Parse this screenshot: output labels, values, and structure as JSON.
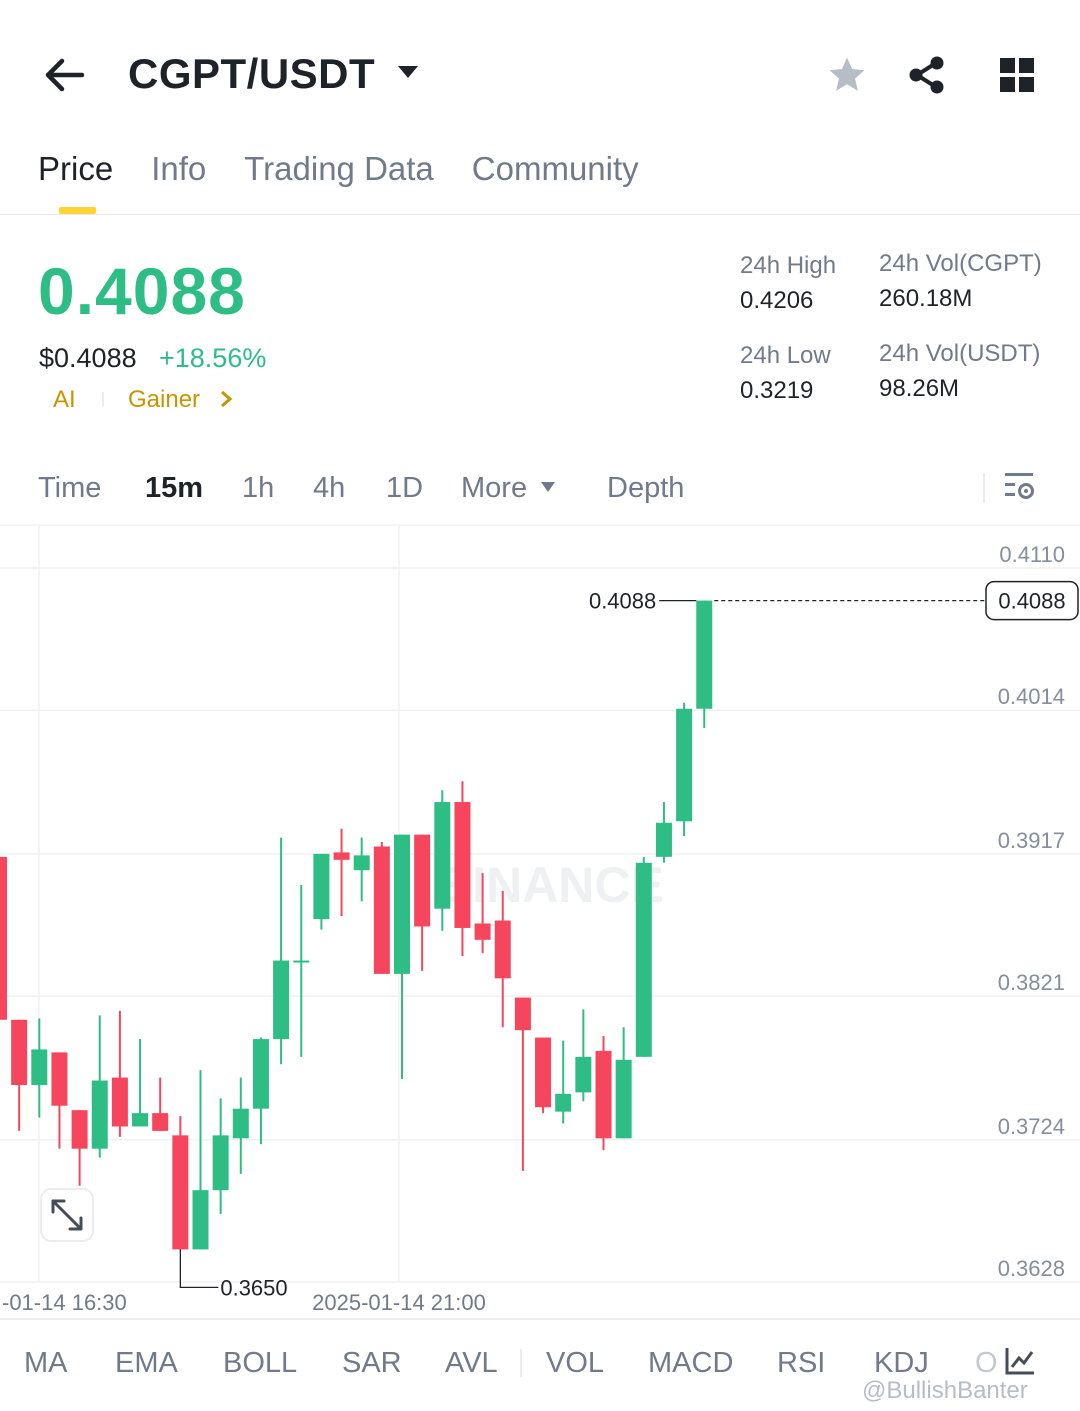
{
  "header": {
    "pair": "CGPT/USDT"
  },
  "tabs": [
    "Price",
    "Info",
    "Trading Data",
    "Community"
  ],
  "price": {
    "last": "0.4088",
    "usd": "$0.4088",
    "change_pct": "+18.56%",
    "tags": [
      "AI",
      "Gainer"
    ]
  },
  "stats": {
    "high_label": "24h High",
    "high": "0.4206",
    "low_label": "24h Low",
    "low": "0.3219",
    "vol_base_label": "24h Vol(CGPT)",
    "vol_base": "260.18M",
    "vol_quote_label": "24h Vol(USDT)",
    "vol_quote": "98.26M"
  },
  "intervals": {
    "time": "Time",
    "m15": "15m",
    "h1": "1h",
    "h4": "4h",
    "d1": "1D",
    "more": "More",
    "depth": "Depth"
  },
  "chart_data": {
    "type": "candlestick",
    "y_ticks": [
      "0.4110",
      "0.4014",
      "0.3917",
      "0.3821",
      "0.3724",
      "0.3628"
    ],
    "ylim": [
      0.3628,
      0.411
    ],
    "x_ticks": [
      "-01-14 16:30",
      "2025-01-14 21:00"
    ],
    "last_price_label": "0.4088",
    "high_marker": "0.4088",
    "low_marker": "0.3650",
    "watermark": "BINANCE",
    "colors": {
      "up": "#2ebd85",
      "down": "#f6465d"
    },
    "candles": [
      {
        "o": 0.3915,
        "h": 0.392,
        "l": 0.3805,
        "c": 0.3805
      },
      {
        "o": 0.3805,
        "h": 0.3805,
        "l": 0.373,
        "c": 0.3761
      },
      {
        "o": 0.3761,
        "h": 0.3806,
        "l": 0.3739,
        "c": 0.3785
      },
      {
        "o": 0.3783,
        "h": 0.3783,
        "l": 0.3718,
        "c": 0.3747
      },
      {
        "o": 0.3744,
        "h": 0.3744,
        "l": 0.3693,
        "c": 0.3718
      },
      {
        "o": 0.3718,
        "h": 0.3808,
        "l": 0.3712,
        "c": 0.3764
      },
      {
        "o": 0.3766,
        "h": 0.3811,
        "l": 0.3726,
        "c": 0.3733
      },
      {
        "o": 0.3733,
        "h": 0.3792,
        "l": 0.3733,
        "c": 0.3742
      },
      {
        "o": 0.3742,
        "h": 0.3766,
        "l": 0.373,
        "c": 0.373
      },
      {
        "o": 0.3727,
        "h": 0.374,
        "l": 0.365,
        "c": 0.365
      },
      {
        "o": 0.365,
        "h": 0.3771,
        "l": 0.365,
        "c": 0.369
      },
      {
        "o": 0.369,
        "h": 0.3752,
        "l": 0.3674,
        "c": 0.3727
      },
      {
        "o": 0.3725,
        "h": 0.3766,
        "l": 0.3701,
        "c": 0.3745
      },
      {
        "o": 0.3745,
        "h": 0.3793,
        "l": 0.3721,
        "c": 0.3792
      },
      {
        "o": 0.3792,
        "h": 0.3928,
        "l": 0.3775,
        "c": 0.3845
      },
      {
        "o": 0.3845,
        "h": 0.3896,
        "l": 0.378,
        "c": 0.3845
      },
      {
        "o": 0.3873,
        "h": 0.3917,
        "l": 0.3866,
        "c": 0.3917
      },
      {
        "o": 0.3918,
        "h": 0.3934,
        "l": 0.3875,
        "c": 0.3913
      },
      {
        "o": 0.3906,
        "h": 0.3928,
        "l": 0.3885,
        "c": 0.3916
      },
      {
        "o": 0.3922,
        "h": 0.3925,
        "l": 0.3836,
        "c": 0.3836
      },
      {
        "o": 0.3836,
        "h": 0.393,
        "l": 0.3765,
        "c": 0.393
      },
      {
        "o": 0.393,
        "h": 0.393,
        "l": 0.3838,
        "c": 0.3868
      },
      {
        "o": 0.388,
        "h": 0.396,
        "l": 0.3865,
        "c": 0.3952
      },
      {
        "o": 0.3952,
        "h": 0.3966,
        "l": 0.3848,
        "c": 0.3867
      },
      {
        "o": 0.387,
        "h": 0.3904,
        "l": 0.385,
        "c": 0.3859
      },
      {
        "o": 0.3872,
        "h": 0.3892,
        "l": 0.38,
        "c": 0.3833
      },
      {
        "o": 0.382,
        "h": 0.382,
        "l": 0.3703,
        "c": 0.3798
      },
      {
        "o": 0.3793,
        "h": 0.3793,
        "l": 0.3742,
        "c": 0.3746
      },
      {
        "o": 0.3743,
        "h": 0.3791,
        "l": 0.3735,
        "c": 0.3755
      },
      {
        "o": 0.3756,
        "h": 0.3812,
        "l": 0.375,
        "c": 0.378
      },
      {
        "o": 0.3784,
        "h": 0.3794,
        "l": 0.3717,
        "c": 0.3725
      },
      {
        "o": 0.3725,
        "h": 0.38,
        "l": 0.3725,
        "c": 0.3778
      },
      {
        "o": 0.378,
        "h": 0.3915,
        "l": 0.378,
        "c": 0.3911
      },
      {
        "o": 0.3915,
        "h": 0.3952,
        "l": 0.3911,
        "c": 0.3938
      },
      {
        "o": 0.3939,
        "h": 0.4019,
        "l": 0.3929,
        "c": 0.4015
      },
      {
        "o": 0.4015,
        "h": 0.4088,
        "l": 0.4002,
        "c": 0.4088
      }
    ]
  },
  "indicators": [
    "MA",
    "EMA",
    "BOLL",
    "SAR",
    "AVL",
    "VOL",
    "MACD",
    "RSI",
    "KDJ",
    "O"
  ],
  "watermark": "@BullishBanter"
}
